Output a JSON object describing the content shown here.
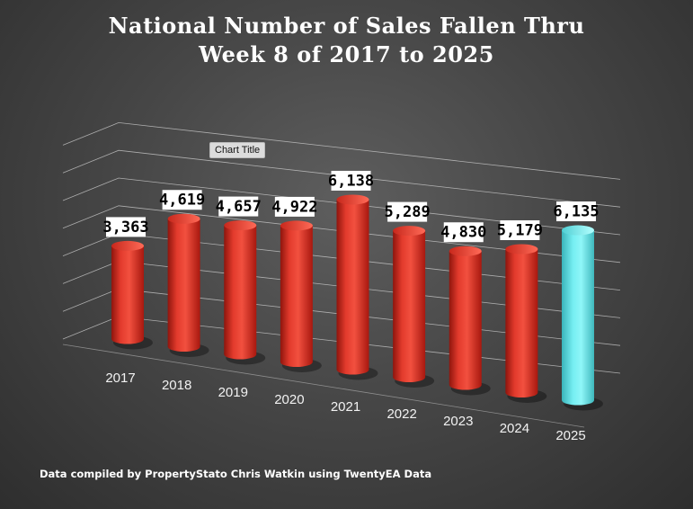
{
  "title_line1": "National Number of Sales Fallen Thru",
  "title_line2": "Week 8 of 2017 to 2025",
  "chart_tag": "Chart Title",
  "footer": "Data compiled by PropertyStato Chris Watkin using TwentyEA Data",
  "colors": {
    "bar": "#e8362a",
    "highlight": "#6de6ea",
    "background": "#474747"
  },
  "chart_data": {
    "type": "bar",
    "title": "National Number of Sales Fallen Thru Week 8 of 2017 to 2025",
    "categories": [
      "2017",
      "2018",
      "2019",
      "2020",
      "2021",
      "2022",
      "2023",
      "2024",
      "2025"
    ],
    "values": [
      3363,
      4619,
      4657,
      4922,
      6138,
      5289,
      4830,
      5179,
      6135
    ],
    "value_labels": [
      "3,363",
      "4,619",
      "4,657",
      "4,922",
      "6,138",
      "5,289",
      "4,830",
      "5,179",
      "6,135"
    ],
    "highlight_index": 8,
    "ylim": [
      0,
      7000
    ],
    "grid": true,
    "xlabel": "",
    "ylabel": ""
  }
}
